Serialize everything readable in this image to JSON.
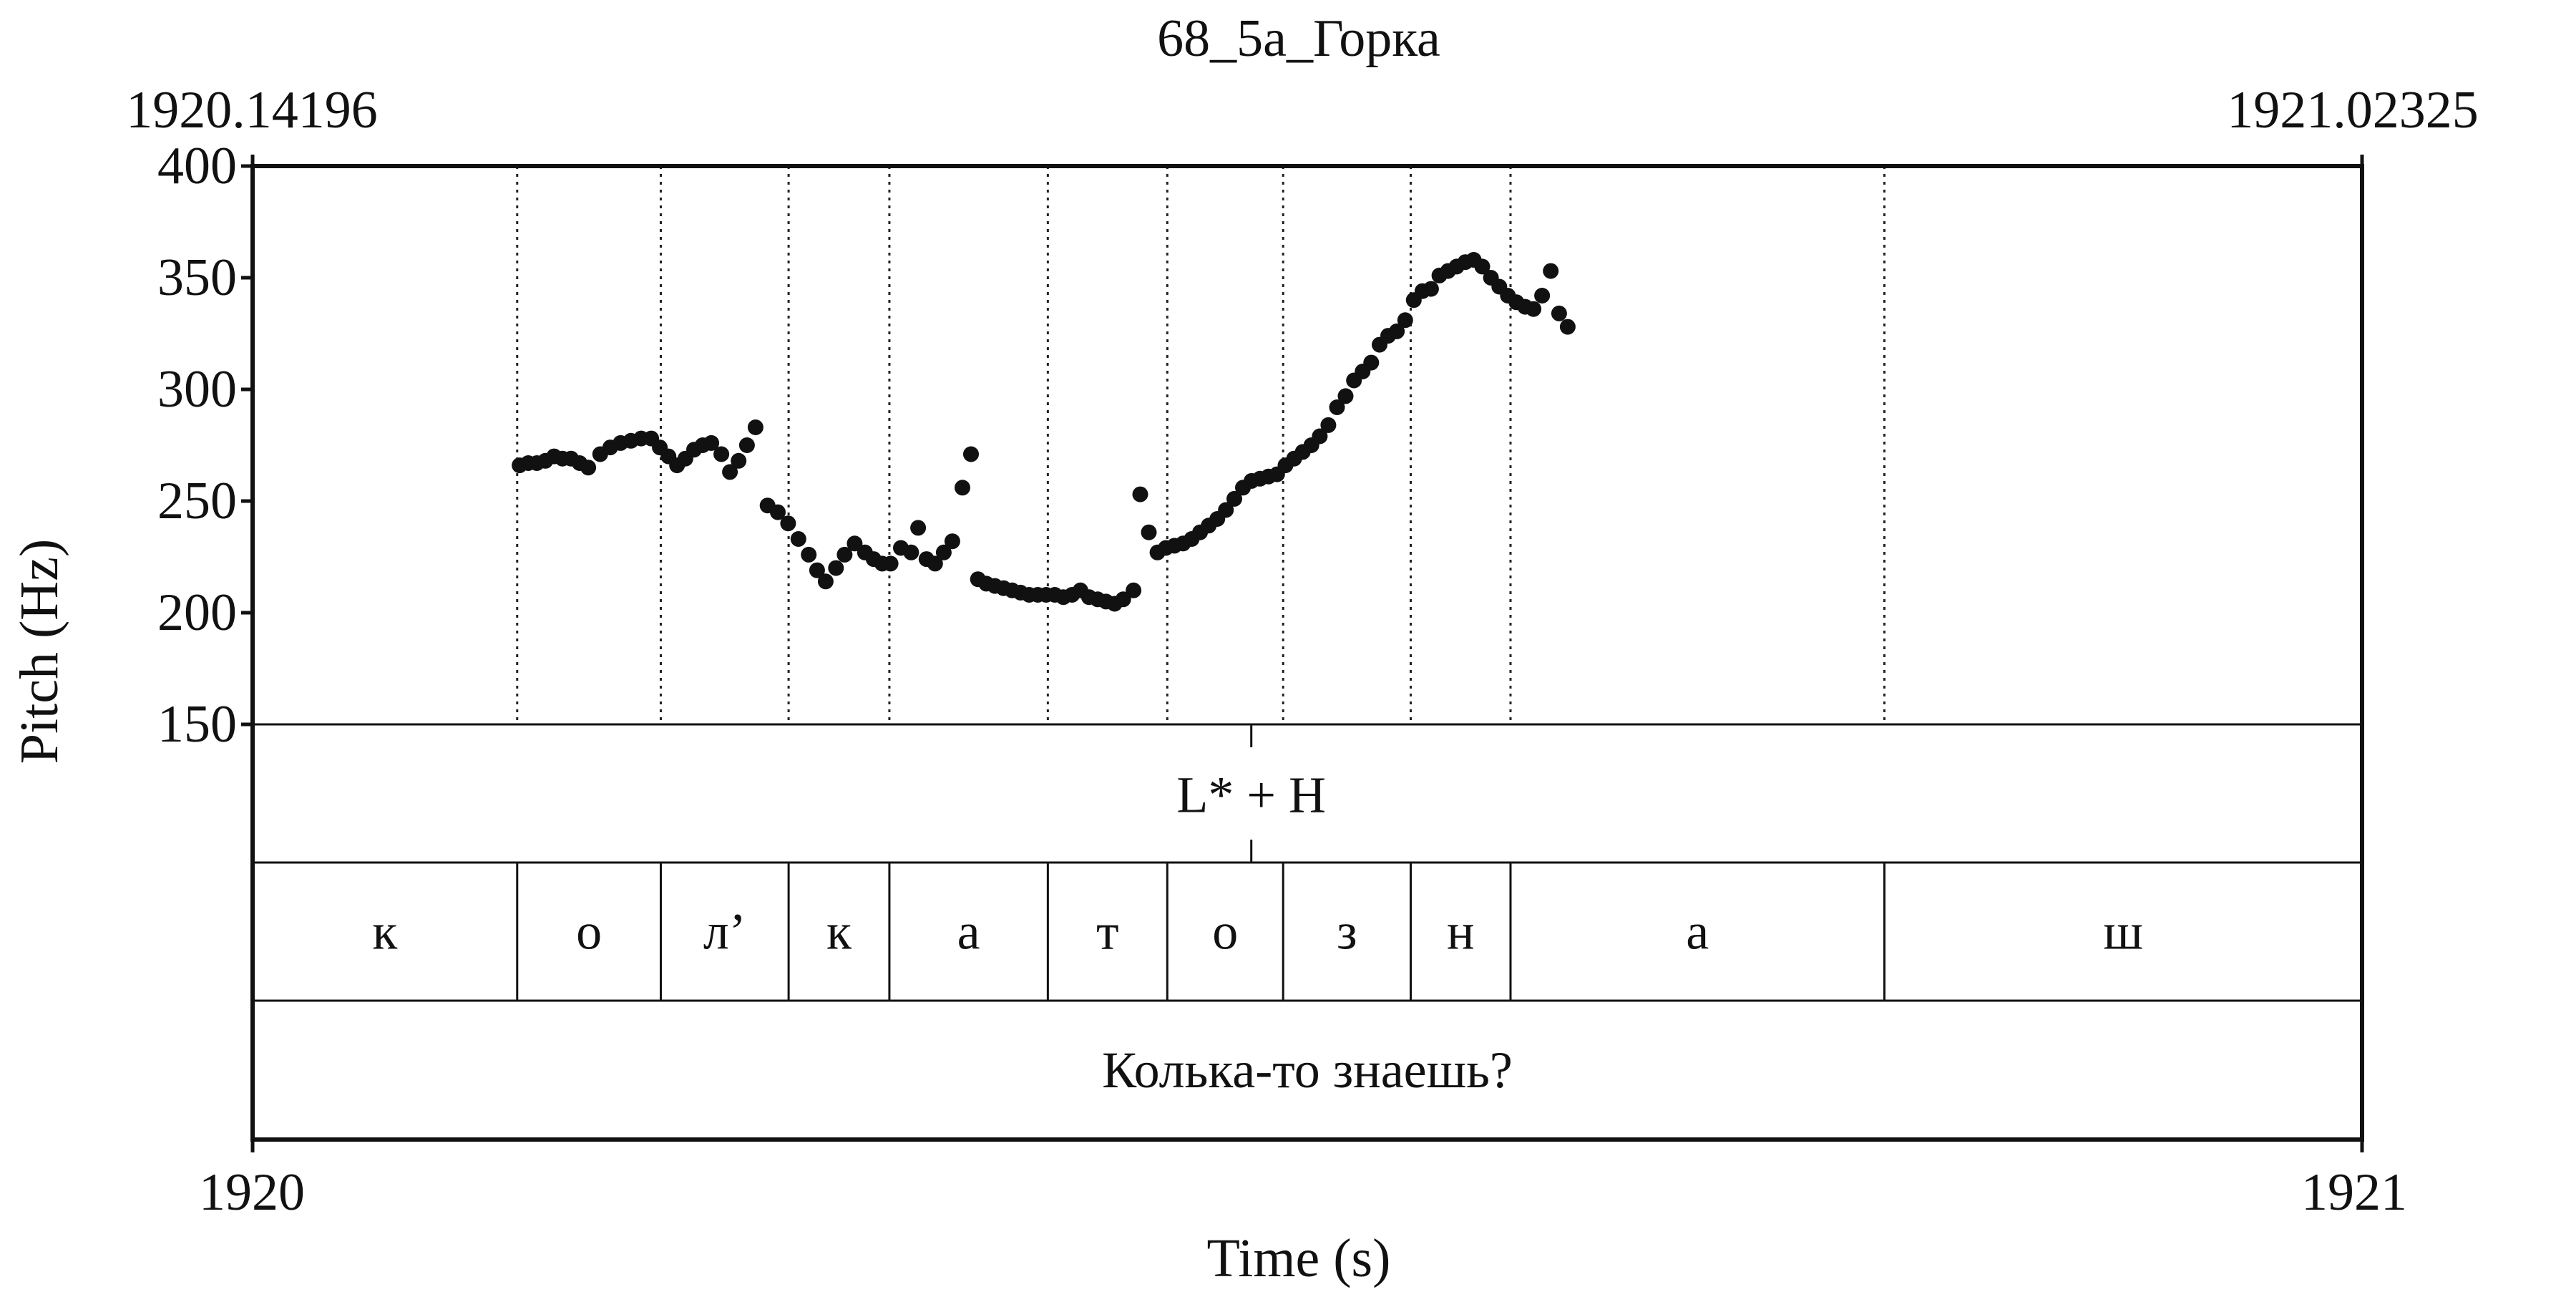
{
  "chart_data": {
    "type": "scatter",
    "title": "68_5а_Горка",
    "xlabel": "Time (s)",
    "ylabel": "Pitch (Hz)",
    "window_start_label": "1920.14196",
    "window_end_label": "1921.02325",
    "x_tick_labels": [
      "1920",
      "1921"
    ],
    "y_ticks": [
      150,
      200,
      250,
      300,
      350,
      400
    ],
    "xlim": [
      1920.14196,
      1921.02325
    ],
    "ylim": [
      150,
      400
    ],
    "grid": false,
    "series": [
      {
        "points": [
          [
            1920.2535,
            266
          ],
          [
            1920.2571,
            267
          ],
          [
            1920.2607,
            267
          ],
          [
            1920.2643,
            268
          ],
          [
            1920.2679,
            270
          ],
          [
            1920.2714,
            269
          ],
          [
            1920.275,
            269
          ],
          [
            1920.2786,
            267
          ],
          [
            1920.2822,
            265
          ],
          [
            1920.2872,
            271
          ],
          [
            1920.2914,
            274
          ],
          [
            1920.2957,
            276
          ],
          [
            1920.3,
            277
          ],
          [
            1920.3043,
            278
          ],
          [
            1920.3085,
            278
          ],
          [
            1920.3121,
            274
          ],
          [
            1920.3157,
            270
          ],
          [
            1920.3193,
            266
          ],
          [
            1920.3228,
            269
          ],
          [
            1920.3264,
            273
          ],
          [
            1920.33,
            275
          ],
          [
            1920.3336,
            276
          ],
          [
            1920.3378,
            271
          ],
          [
            1920.3414,
            263
          ],
          [
            1920.345,
            268
          ],
          [
            1920.3485,
            275
          ],
          [
            1920.3521,
            283
          ],
          [
            1920.3571,
            248
          ],
          [
            1920.3614,
            245
          ],
          [
            1920.3657,
            240
          ],
          [
            1920.37,
            233
          ],
          [
            1920.3743,
            226
          ],
          [
            1920.3778,
            219
          ],
          [
            1920.3814,
            214
          ],
          [
            1920.3857,
            220
          ],
          [
            1920.3893,
            226
          ],
          [
            1920.3935,
            231
          ],
          [
            1920.3978,
            227
          ],
          [
            1920.4014,
            224
          ],
          [
            1920.405,
            222
          ],
          [
            1920.4085,
            222
          ],
          [
            1920.4128,
            229
          ],
          [
            1920.4171,
            227
          ],
          [
            1920.42,
            238
          ],
          [
            1920.4235,
            224
          ],
          [
            1920.4271,
            222
          ],
          [
            1920.4307,
            227
          ],
          [
            1920.4343,
            232
          ],
          [
            1920.4385,
            256
          ],
          [
            1920.4421,
            271
          ],
          [
            1920.445,
            215
          ],
          [
            1920.4485,
            213
          ],
          [
            1920.4521,
            212
          ],
          [
            1920.4557,
            211
          ],
          [
            1920.4593,
            210
          ],
          [
            1920.4628,
            209
          ],
          [
            1920.4664,
            208
          ],
          [
            1920.47,
            208
          ],
          [
            1920.4735,
            208
          ],
          [
            1920.4771,
            208
          ],
          [
            1920.4807,
            207
          ],
          [
            1920.4843,
            208
          ],
          [
            1920.4878,
            210
          ],
          [
            1920.4914,
            207
          ],
          [
            1920.495,
            206
          ],
          [
            1920.4985,
            205
          ],
          [
            1920.5021,
            204
          ],
          [
            1920.5057,
            206
          ],
          [
            1920.51,
            210
          ],
          [
            1920.5128,
            253
          ],
          [
            1920.5164,
            236
          ],
          [
            1920.52,
            227
          ],
          [
            1920.5235,
            229
          ],
          [
            1920.5271,
            230
          ],
          [
            1920.5307,
            231
          ],
          [
            1920.5343,
            233
          ],
          [
            1920.5378,
            236
          ],
          [
            1920.5414,
            239
          ],
          [
            1920.545,
            242
          ],
          [
            1920.5486,
            246
          ],
          [
            1920.5521,
            251
          ],
          [
            1920.5557,
            256
          ],
          [
            1920.5593,
            259
          ],
          [
            1920.5628,
            260
          ],
          [
            1920.5664,
            261
          ],
          [
            1920.57,
            262
          ],
          [
            1920.5735,
            266
          ],
          [
            1920.5771,
            269
          ],
          [
            1920.5807,
            272
          ],
          [
            1920.5843,
            275
          ],
          [
            1920.5878,
            279
          ],
          [
            1920.5914,
            284
          ],
          [
            1920.595,
            292
          ],
          [
            1920.5986,
            297
          ],
          [
            1920.6021,
            304
          ],
          [
            1920.6057,
            308
          ],
          [
            1920.6093,
            312
          ],
          [
            1920.6128,
            320
          ],
          [
            1920.6164,
            324
          ],
          [
            1920.62,
            326
          ],
          [
            1920.6235,
            331
          ],
          [
            1920.6271,
            340
          ],
          [
            1920.6307,
            344
          ],
          [
            1920.6343,
            345
          ],
          [
            1920.6378,
            351
          ],
          [
            1920.6414,
            353
          ],
          [
            1920.645,
            355
          ],
          [
            1920.6486,
            357
          ],
          [
            1920.6521,
            358
          ],
          [
            1920.6557,
            355
          ],
          [
            1920.6593,
            350
          ],
          [
            1920.6628,
            346
          ],
          [
            1920.6664,
            342
          ],
          [
            1920.67,
            339
          ],
          [
            1920.6736,
            337
          ],
          [
            1920.6771,
            336
          ],
          [
            1920.6807,
            342
          ],
          [
            1920.6843,
            353
          ],
          [
            1920.6878,
            334
          ],
          [
            1920.6914,
            328
          ]
        ]
      }
    ],
    "tiers": [
      {
        "name": "tones",
        "points": [
          {
            "time": 1920.5592,
            "label": "L* + H"
          }
        ]
      },
      {
        "name": "segments",
        "intervals": [
          {
            "start": 1920.14196,
            "end": 1920.2525,
            "label": "к"
          },
          {
            "start": 1920.2525,
            "end": 1920.3125,
            "label": "о"
          },
          {
            "start": 1920.3125,
            "end": 1920.3659,
            "label": "л’"
          },
          {
            "start": 1920.3659,
            "end": 1920.408,
            "label": "к"
          },
          {
            "start": 1920.408,
            "end": 1920.4742,
            "label": "а"
          },
          {
            "start": 1920.4742,
            "end": 1920.5241,
            "label": "т"
          },
          {
            "start": 1920.5241,
            "end": 1920.5725,
            "label": "о"
          },
          {
            "start": 1920.5725,
            "end": 1920.6258,
            "label": "з"
          },
          {
            "start": 1920.6258,
            "end": 1920.6675,
            "label": "н"
          },
          {
            "start": 1920.6675,
            "end": 1920.8237,
            "label": "а"
          },
          {
            "start": 1920.8237,
            "end": 1921.02325,
            "label": "ш"
          }
        ]
      },
      {
        "name": "sentence",
        "intervals": [
          {
            "start": 1920.14196,
            "end": 1921.02325,
            "label": "Колька-то знаешь?"
          }
        ]
      }
    ]
  }
}
